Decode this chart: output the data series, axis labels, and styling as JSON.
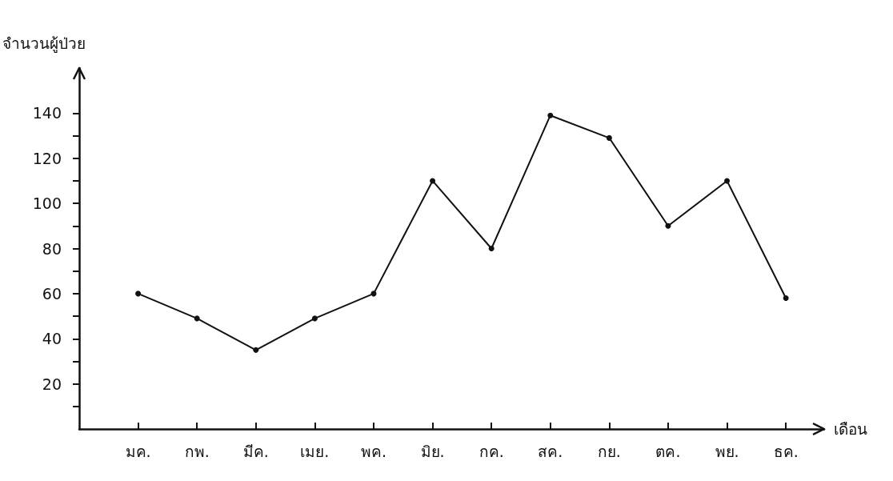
{
  "chart_data": {
    "type": "line",
    "xlabel": "เดือน",
    "ylabel": "จำนวนผู้ป่วย",
    "categories": [
      "มค.",
      "กพ.",
      "มีค.",
      "เมย.",
      "พค.",
      "มิย.",
      "กค.",
      "สค.",
      "กย.",
      "ตค.",
      "พย.",
      "ธค."
    ],
    "series": [
      {
        "color": "#111111",
        "values": [
          60,
          49,
          35,
          49,
          60,
          110,
          80,
          139,
          129,
          90,
          110,
          58
        ]
      }
    ],
    "ylim": [
      0,
      160
    ],
    "yticks": [
      {
        "value": 10,
        "label": null
      },
      20,
      {
        "value": 30,
        "label": null
      },
      40,
      {
        "value": 50,
        "label": null
      },
      60,
      {
        "value": 70,
        "label": null
      },
      80,
      {
        "value": 90,
        "label": null
      },
      100,
      {
        "value": 110,
        "label": null
      },
      120,
      {
        "value": 130,
        "label": null
      },
      140
    ],
    "grid": false,
    "marker": "circle",
    "line_style": "solid"
  }
}
